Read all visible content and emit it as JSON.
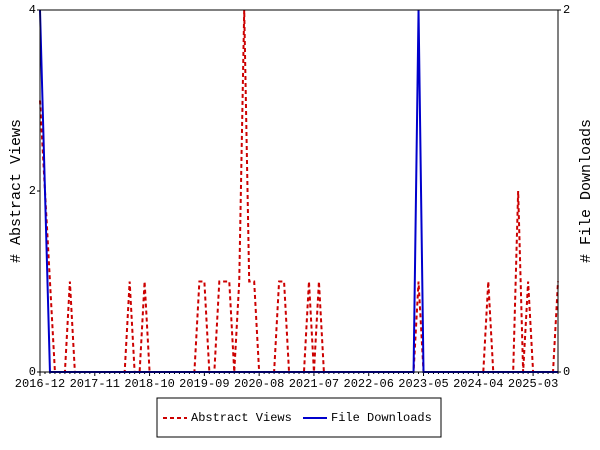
{
  "chart_data": {
    "type": "line",
    "categories": [
      "2016-12",
      null,
      null,
      null,
      null,
      null,
      null,
      null,
      null,
      null,
      null,
      "2017-11",
      null,
      null,
      null,
      null,
      null,
      null,
      null,
      null,
      null,
      null,
      "2018-10",
      null,
      null,
      null,
      null,
      null,
      null,
      null,
      null,
      null,
      null,
      "2019-09",
      null,
      null,
      null,
      null,
      null,
      null,
      null,
      null,
      null,
      null,
      "2020-08",
      null,
      null,
      null,
      null,
      null,
      null,
      null,
      null,
      null,
      null,
      "2021-07",
      null,
      null,
      null,
      null,
      null,
      null,
      null,
      null,
      null,
      null,
      "2022-06",
      null,
      null,
      null,
      null,
      null,
      null,
      null,
      null,
      null,
      null,
      "2023-05",
      null,
      null,
      null,
      null,
      null,
      null,
      null,
      null,
      null,
      null,
      "2024-04",
      null,
      null,
      null,
      null,
      null,
      null,
      null,
      null,
      null,
      null,
      "2025-03",
      null,
      null,
      null,
      null,
      null
    ],
    "series": [
      {
        "name": "Abstract Views",
        "color": "#cc0000",
        "dashed": true,
        "values": [
          3,
          2,
          1,
          0,
          0,
          0,
          1,
          0,
          0,
          0,
          0,
          0,
          0,
          0,
          0,
          0,
          0,
          0,
          1,
          0,
          0,
          1,
          0,
          0,
          0,
          0,
          0,
          0,
          0,
          0,
          0,
          0,
          1,
          1,
          0,
          0,
          1,
          1,
          1,
          0,
          1,
          4,
          1,
          1,
          0,
          0,
          0,
          0,
          1,
          1,
          0,
          0,
          0,
          0,
          1,
          0,
          1,
          0,
          0,
          0,
          0,
          0,
          0,
          0,
          0,
          0,
          0,
          0,
          0,
          0,
          0,
          0,
          0,
          0,
          0,
          0,
          1,
          0,
          0,
          0,
          0,
          0,
          0,
          0,
          0,
          0,
          0,
          0,
          0,
          0,
          1,
          0,
          0,
          0,
          0,
          0,
          2,
          0,
          1,
          0,
          0,
          0,
          0,
          0,
          1
        ]
      },
      {
        "name": "File Downloads",
        "color": "#0000cc",
        "axis": "y2",
        "values": [
          2,
          1,
          0,
          0,
          0,
          0,
          0,
          0,
          0,
          0,
          0,
          0,
          0,
          0,
          0,
          0,
          0,
          0,
          0,
          0,
          0,
          0,
          0,
          0,
          0,
          0,
          0,
          0,
          0,
          0,
          0,
          0,
          0,
          0,
          0,
          0,
          0,
          0,
          0,
          0,
          0,
          0,
          0,
          0,
          0,
          0,
          0,
          0,
          0,
          0,
          0,
          0,
          0,
          0,
          0,
          0,
          0,
          0,
          0,
          0,
          0,
          0,
          0,
          0,
          0,
          0,
          0,
          0,
          0,
          0,
          0,
          0,
          0,
          0,
          0,
          0,
          2,
          0,
          0,
          0,
          0,
          0,
          0,
          0,
          0,
          0,
          0,
          0,
          0,
          0,
          0,
          0,
          0,
          0,
          0,
          0,
          0,
          0,
          0,
          0,
          0,
          0,
          0,
          0,
          0
        ]
      }
    ],
    "y_label": "# Abstract Views",
    "y2_label": "# File Downloads",
    "ylim": [
      0,
      4
    ],
    "yticks": [
      0,
      2,
      4
    ],
    "y2lim": [
      0,
      2
    ],
    "y2ticks": [
      0,
      2
    ],
    "legend": "bottom"
  }
}
